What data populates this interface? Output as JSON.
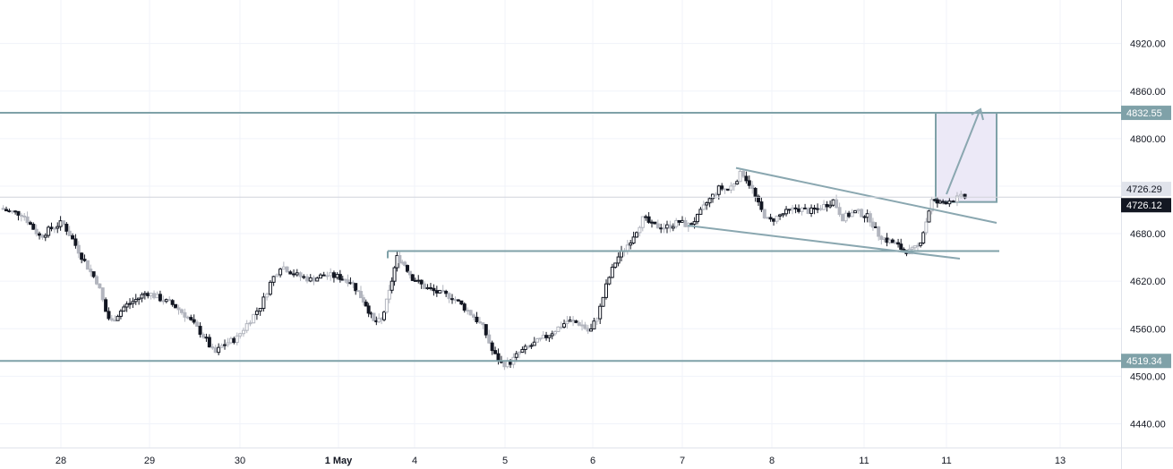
{
  "chart_data": {
    "type": "candlestick",
    "title": "",
    "xlabel": "",
    "ylabel": "",
    "ylim": [
      4410,
      4975
    ],
    "y_ticks": [
      "4920.00",
      "4860.00",
      "4800.00",
      "4680.00",
      "4620.00",
      "4560.00",
      "4500.00",
      "4440.00"
    ],
    "x_ticks": [
      {
        "label": "28",
        "bold": false
      },
      {
        "label": "29",
        "bold": false
      },
      {
        "label": "30",
        "bold": false
      },
      {
        "label": "1 May",
        "bold": true
      },
      {
        "label": "4",
        "bold": false
      },
      {
        "label": "5",
        "bold": false
      },
      {
        "label": "6",
        "bold": false
      },
      {
        "label": "7",
        "bold": false
      },
      {
        "label": "8",
        "bold": false
      },
      {
        "label": "11",
        "bold": false
      },
      {
        "label": "11",
        "bold": false
      },
      {
        "label": "13",
        "bold": false
      }
    ],
    "horizontal_levels": [
      {
        "value": 4832.55,
        "label": "4832.55",
        "color": "#7fa1a8"
      },
      {
        "value": 4519.34,
        "label": "4519.34",
        "color": "#7fa1a8"
      }
    ],
    "price_labels": [
      {
        "value": 4726.29,
        "label": "4726.29",
        "style": "light"
      },
      {
        "value": 4726.12,
        "label": "4726.12",
        "style": "dark"
      }
    ],
    "support_line": {
      "value": 4658
    },
    "channel": {
      "upper": [
        [
          7.6,
          4763
        ],
        [
          9.5,
          4719
        ]
      ],
      "lower": [
        [
          7.0,
          4687
        ],
        [
          9.1,
          4645
        ]
      ]
    },
    "projection_box": {
      "y_low": 4720,
      "y_high": 4832.55,
      "fill": "#ece9f7"
    },
    "colors": {
      "up": "#ffffff",
      "down": "#131722",
      "wick": "#131722",
      "hollow_gray": "#b2b5be",
      "grid": "#f0f3fa"
    },
    "x_domain": [
      -0.65,
      11.25
    ],
    "anchors": [
      [
        -0.65,
        4712
      ],
      [
        -0.55,
        4708
      ],
      [
        -0.4,
        4705
      ],
      [
        -0.3,
        4690
      ],
      [
        -0.2,
        4676
      ],
      [
        -0.1,
        4685
      ],
      [
        0.05,
        4694
      ],
      [
        0.15,
        4676
      ],
      [
        0.25,
        4655
      ],
      [
        0.35,
        4635
      ],
      [
        0.45,
        4618
      ],
      [
        0.55,
        4578
      ],
      [
        0.6,
        4568
      ],
      [
        0.75,
        4588
      ],
      [
        0.9,
        4598
      ],
      [
        1.0,
        4606
      ],
      [
        1.15,
        4598
      ],
      [
        1.3,
        4590
      ],
      [
        1.45,
        4575
      ],
      [
        1.55,
        4562
      ],
      [
        1.65,
        4548
      ],
      [
        1.75,
        4528
      ],
      [
        1.85,
        4540
      ],
      [
        2.0,
        4548
      ],
      [
        2.1,
        4565
      ],
      [
        2.25,
        4590
      ],
      [
        2.35,
        4620
      ],
      [
        2.45,
        4640
      ],
      [
        2.6,
        4628
      ],
      [
        2.75,
        4622
      ],
      [
        2.9,
        4628
      ],
      [
        3.05,
        4625
      ],
      [
        3.2,
        4620
      ],
      [
        3.3,
        4605
      ],
      [
        3.4,
        4590
      ],
      [
        3.5,
        4568
      ],
      [
        3.6,
        4570
      ],
      [
        3.7,
        4605
      ],
      [
        3.8,
        4650
      ],
      [
        3.9,
        4642
      ],
      [
        4.0,
        4625
      ],
      [
        4.15,
        4612
      ],
      [
        4.3,
        4605
      ],
      [
        4.45,
        4600
      ],
      [
        4.6,
        4585
      ],
      [
        4.7,
        4574
      ],
      [
        4.8,
        4560
      ],
      [
        4.9,
        4530
      ],
      [
        5.0,
        4515
      ],
      [
        5.1,
        4518
      ],
      [
        5.2,
        4530
      ],
      [
        5.35,
        4540
      ],
      [
        5.5,
        4550
      ],
      [
        5.65,
        4562
      ],
      [
        5.75,
        4570
      ],
      [
        5.9,
        4566
      ],
      [
        6.0,
        4555
      ],
      [
        6.1,
        4580
      ],
      [
        6.2,
        4620
      ],
      [
        6.3,
        4648
      ],
      [
        6.4,
        4662
      ],
      [
        6.5,
        4680
      ],
      [
        6.6,
        4700
      ],
      [
        6.7,
        4690
      ],
      [
        6.85,
        4688
      ],
      [
        7.0,
        4695
      ],
      [
        7.1,
        4690
      ],
      [
        7.2,
        4700
      ],
      [
        7.3,
        4718
      ],
      [
        7.45,
        4738
      ],
      [
        7.55,
        4735
      ],
      [
        7.7,
        4758
      ],
      [
        7.8,
        4740
      ],
      [
        7.9,
        4712
      ],
      [
        8.0,
        4695
      ],
      [
        8.15,
        4705
      ],
      [
        8.3,
        4712
      ],
      [
        8.45,
        4708
      ],
      [
        8.55,
        4712
      ],
      [
        8.7,
        4722
      ],
      [
        8.8,
        4700
      ],
      [
        8.95,
        4708
      ],
      [
        9.1,
        4700
      ],
      [
        9.2,
        4680
      ],
      [
        9.3,
        4672
      ],
      [
        9.4,
        4668
      ],
      [
        9.5,
        4660
      ],
      [
        9.6,
        4657
      ],
      [
        9.7,
        4665
      ],
      [
        9.78,
        4692
      ],
      [
        9.85,
        4722
      ],
      [
        9.95,
        4718
      ],
      [
        10.05,
        4722
      ],
      [
        10.12,
        4724
      ],
      [
        10.17,
        4726.12
      ]
    ]
  }
}
